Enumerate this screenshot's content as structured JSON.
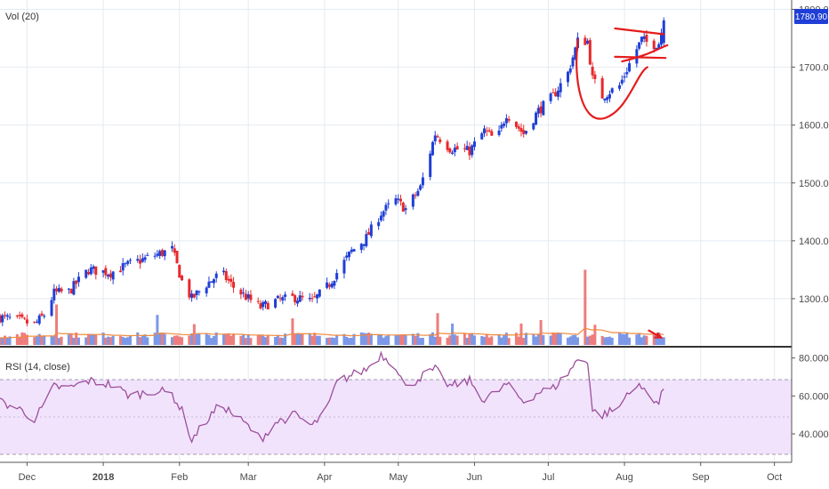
{
  "price_pane": {
    "legend": "Vol (20)",
    "last_price_tag": "1780.90",
    "y_ticks": [
      "1800.00",
      "1700.00",
      "1600.00",
      "1500.00",
      "1400.00",
      "1300.00"
    ]
  },
  "rsi_pane": {
    "legend": "RSI (14, close)",
    "y_ticks": [
      "80.0000",
      "60.0000",
      "40.0000"
    ]
  },
  "x_axis_labels": [
    "Dec",
    "2018",
    "Feb",
    "Mar",
    "Apr",
    "May",
    "Jun",
    "Jul",
    "Aug",
    "Sep",
    "Oct"
  ],
  "colors": {
    "up": "#1f3fd6",
    "down": "#e8282a",
    "vol_up": "#7b98e8",
    "vol_down": "#ee7c7c",
    "vol_ma": "#f08a3c",
    "rsi_line": "#9c4f9c",
    "rsi_band": "#f1e3fb",
    "annotation": "#e41c1c",
    "price_tag": "#1f3fd6"
  },
  "chart_data": [
    {
      "type": "candlestick",
      "y_axis": {
        "min": 1220,
        "max": 1810,
        "ticks": [
          1800,
          1700,
          1600,
          1500,
          1400,
          1300
        ]
      },
      "x_axis": {
        "start": "2017-11-20",
        "end": "2018-10-08",
        "labels": [
          "Dec",
          "2018",
          "Feb",
          "Mar",
          "Apr",
          "May",
          "Jun",
          "Jul",
          "Aug",
          "Sep",
          "Oct"
        ]
      },
      "series": [
        {
          "anchors": [
            [
              "2017-11-20",
              1268
            ],
            [
              "2017-11-28",
              1262
            ],
            [
              "2017-12-04",
              1255
            ],
            [
              "2017-12-08",
              1272
            ],
            [
              "2017-12-12",
              1310
            ],
            [
              "2017-12-18",
              1312
            ],
            [
              "2017-12-26",
              1350
            ],
            [
              "2018-01-04",
              1345
            ],
            [
              "2018-01-12",
              1360
            ],
            [
              "2018-01-22",
              1375
            ],
            [
              "2018-01-29",
              1385
            ],
            [
              "2018-02-02",
              1330
            ],
            [
              "2018-02-06",
              1300
            ],
            [
              "2018-02-12",
              1325
            ],
            [
              "2018-02-18",
              1345
            ],
            [
              "2018-02-23",
              1320
            ],
            [
              "2018-03-01",
              1300
            ],
            [
              "2018-03-06",
              1285
            ],
            [
              "2018-03-12",
              1296
            ],
            [
              "2018-03-20",
              1302
            ],
            [
              "2018-03-27",
              1295
            ],
            [
              "2018-04-02",
              1320
            ],
            [
              "2018-04-06",
              1345
            ],
            [
              "2018-04-12",
              1382
            ],
            [
              "2018-04-18",
              1405
            ],
            [
              "2018-04-24",
              1448
            ],
            [
              "2018-04-30",
              1470
            ],
            [
              "2018-05-04",
              1455
            ],
            [
              "2018-05-10",
              1492
            ],
            [
              "2018-05-16",
              1585
            ],
            [
              "2018-05-22",
              1560
            ],
            [
              "2018-05-30",
              1555
            ],
            [
              "2018-06-05",
              1590
            ],
            [
              "2018-06-10",
              1572
            ],
            [
              "2018-06-14",
              1620
            ],
            [
              "2018-06-21",
              1585
            ],
            [
              "2018-06-27",
              1625
            ],
            [
              "2018-07-03",
              1650
            ],
            [
              "2018-07-09",
              1690
            ],
            [
              "2018-07-13",
              1745
            ],
            [
              "2018-07-17",
              1745
            ],
            [
              "2018-07-19",
              1680
            ],
            [
              "2018-07-23",
              1650
            ],
            [
              "2018-07-30",
              1668
            ],
            [
              "2018-08-04",
              1715
            ],
            [
              "2018-08-08",
              1748
            ],
            [
              "2018-08-12",
              1738
            ],
            [
              "2018-08-15",
              1742
            ],
            [
              "2018-08-17",
              1781
            ]
          ],
          "last_close": 1780.9
        }
      ],
      "annotations": [
        "red flag/pennant lines drawn around recent price consolidation",
        "red hand-drawn curve under July dip"
      ]
    },
    {
      "type": "bar",
      "name_shown": "Vol (20)",
      "description": "volume bars with moving average line; red arrow pointing down-right at latest volume",
      "spikes": [
        [
          "2017-12-13",
          1290
        ],
        [
          "2018-01-06",
          1282
        ],
        [
          "2018-01-23",
          1272
        ],
        [
          "2018-02-07",
          1256
        ],
        [
          "2018-03-19",
          1266
        ],
        [
          "2018-05-17",
          1275
        ],
        [
          "2018-05-23",
          1257
        ],
        [
          "2018-06-20",
          1257
        ],
        [
          "2018-06-28",
          1263
        ],
        [
          "2018-07-16",
          1350
        ],
        [
          "2018-07-20",
          1255
        ]
      ]
    },
    {
      "type": "line",
      "name_shown": "RSI (14, close)",
      "y_axis": {
        "min": 25,
        "max": 85,
        "ticks": [
          80,
          60,
          40
        ],
        "band": [
          30,
          70
        ]
      },
      "series": [
        {
          "anchors": [
            [
              "2017-11-20",
              57
            ],
            [
              "2017-11-28",
              53
            ],
            [
              "2017-12-04",
              48
            ],
            [
              "2017-12-08",
              55
            ],
            [
              "2017-12-12",
              65
            ],
            [
              "2017-12-18",
              64
            ],
            [
              "2017-12-26",
              68
            ],
            [
              "2018-01-04",
              66
            ],
            [
              "2018-01-12",
              60
            ],
            [
              "2018-01-22",
              63
            ],
            [
              "2018-01-29",
              61
            ],
            [
              "2018-02-02",
              52
            ],
            [
              "2018-02-06",
              37
            ],
            [
              "2018-02-12",
              47
            ],
            [
              "2018-02-18",
              56
            ],
            [
              "2018-02-23",
              50
            ],
            [
              "2018-03-01",
              44
            ],
            [
              "2018-03-06",
              37
            ],
            [
              "2018-03-12",
              46
            ],
            [
              "2018-03-20",
              50
            ],
            [
              "2018-03-27",
              44
            ],
            [
              "2018-04-02",
              53
            ],
            [
              "2018-04-06",
              67
            ],
            [
              "2018-04-12",
              71
            ],
            [
              "2018-04-18",
              74
            ],
            [
              "2018-04-24",
              82
            ],
            [
              "2018-04-30",
              76
            ],
            [
              "2018-05-04",
              64
            ],
            [
              "2018-05-10",
              70
            ],
            [
              "2018-05-16",
              74
            ],
            [
              "2018-05-22",
              65
            ],
            [
              "2018-05-30",
              68
            ],
            [
              "2018-06-05",
              58
            ],
            [
              "2018-06-10",
              62
            ],
            [
              "2018-06-14",
              66
            ],
            [
              "2018-06-21",
              57
            ],
            [
              "2018-06-27",
              62
            ],
            [
              "2018-07-03",
              64
            ],
            [
              "2018-07-09",
              72
            ],
            [
              "2018-07-13",
              79
            ],
            [
              "2018-07-17",
              79
            ],
            [
              "2018-07-19",
              52
            ],
            [
              "2018-07-23",
              50
            ],
            [
              "2018-07-30",
              54
            ],
            [
              "2018-08-04",
              66
            ],
            [
              "2018-08-08",
              64
            ],
            [
              "2018-08-12",
              60
            ],
            [
              "2018-08-15",
              56
            ],
            [
              "2018-08-17",
              64
            ]
          ]
        }
      ]
    }
  ]
}
